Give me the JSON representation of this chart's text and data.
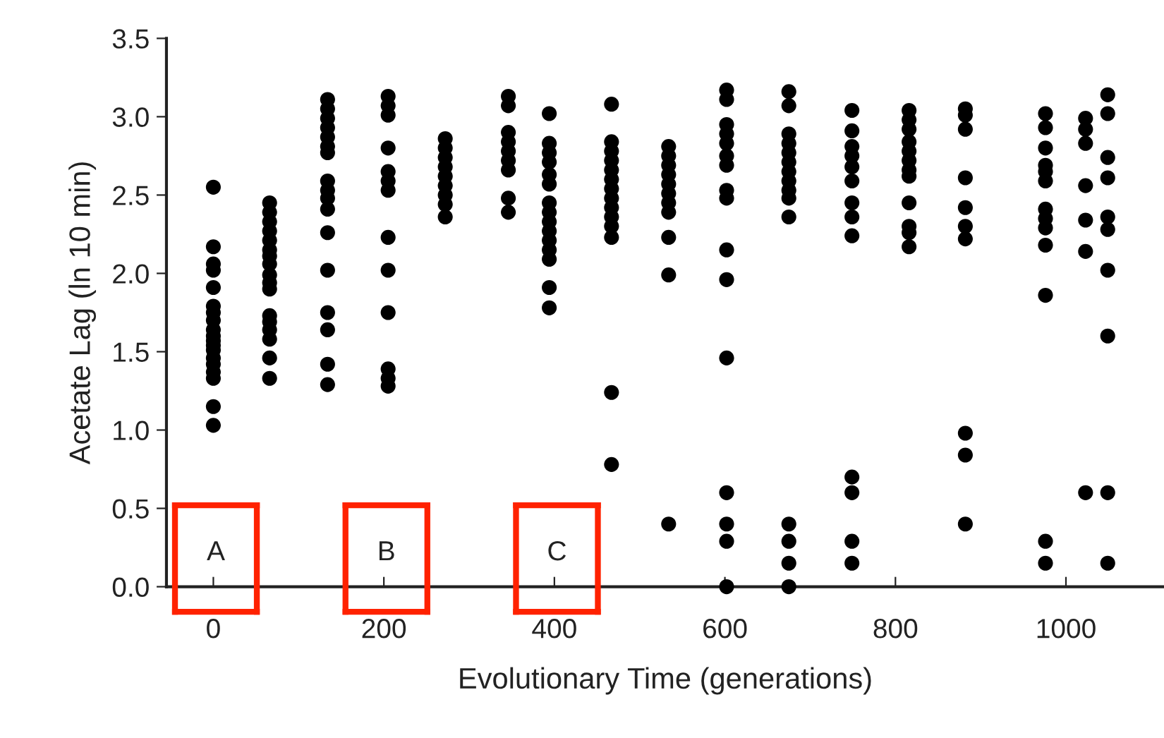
{
  "chart_data": {
    "type": "scatter",
    "xlabel": "Evolutionary Time (generations)",
    "ylabel": "Acetate Lag (ln 10 min)",
    "xlim": [
      -55,
      1115
    ],
    "xticks": [
      0,
      200,
      400,
      600,
      800,
      1000
    ],
    "ylim": [
      0,
      3.5
    ],
    "yticks": [
      {
        "value": 0,
        "label": "0.0"
      },
      {
        "value": 0.5,
        "label": "0.5"
      },
      {
        "value": 1,
        "label": "1.0"
      },
      {
        "value": 1.5,
        "label": "1.5"
      },
      {
        "value": 2,
        "label": "2.0"
      },
      {
        "value": 2.5,
        "label": "2.5"
      },
      {
        "value": 3,
        "label": "3.0"
      },
      {
        "value": 3.5,
        "label": "3.5"
      }
    ],
    "grid": false,
    "legend": false,
    "marker": "circle",
    "annotations": [
      "A",
      "B",
      "C"
    ],
    "series": [
      {
        "color": "#000000",
        "x": [
          0,
          0,
          0,
          0,
          0,
          0,
          0,
          0,
          0,
          0,
          0,
          0,
          0,
          0,
          0,
          0,
          0,
          0,
          0,
          66,
          66,
          66,
          66,
          66,
          66,
          66,
          66,
          66,
          66,
          66,
          66,
          66,
          66,
          66,
          66,
          66,
          134,
          134,
          134,
          134,
          134,
          134,
          134,
          134,
          134,
          134,
          134,
          134,
          134,
          134,
          134,
          134,
          134,
          205,
          205,
          205,
          205,
          205,
          205,
          205,
          205,
          205,
          205,
          205,
          205,
          205,
          272,
          272,
          272,
          272,
          272,
          272,
          272,
          272,
          272,
          346,
          346,
          346,
          346,
          346,
          346,
          346,
          346,
          346,
          394,
          394,
          394,
          394,
          394,
          394,
          394,
          394,
          394,
          394,
          394,
          394,
          394,
          394,
          394,
          467,
          467,
          467,
          467,
          467,
          467,
          467,
          467,
          467,
          467,
          467,
          467,
          467,
          467,
          534,
          534,
          534,
          534,
          534,
          534,
          534,
          534,
          534,
          534,
          534,
          602,
          602,
          602,
          602,
          602,
          602,
          602,
          602,
          602,
          602,
          602,
          602,
          602,
          602,
          602,
          602,
          675,
          675,
          675,
          675,
          675,
          675,
          675,
          675,
          675,
          675,
          675,
          675,
          675,
          675,
          675,
          749,
          749,
          749,
          749,
          749,
          749,
          749,
          749,
          749,
          749,
          749,
          749,
          749,
          816,
          816,
          816,
          816,
          816,
          816,
          816,
          816,
          816,
          816,
          816,
          816,
          882,
          882,
          882,
          882,
          882,
          882,
          882,
          882,
          882,
          882,
          976,
          976,
          976,
          976,
          976,
          976,
          976,
          976,
          976,
          976,
          976,
          976,
          976,
          1023,
          1023,
          1023,
          1023,
          1023,
          1023,
          1023,
          1049,
          1049,
          1049,
          1049,
          1049,
          1049,
          1049,
          1049,
          1049,
          1049
        ],
        "values": [
          2.55,
          2.17,
          2.06,
          2.02,
          1.91,
          1.79,
          1.75,
          1.7,
          1.64,
          1.6,
          1.57,
          1.54,
          1.51,
          1.46,
          1.42,
          1.37,
          1.33,
          1.15,
          1.03,
          2.45,
          2.39,
          2.33,
          2.27,
          2.21,
          2.15,
          2.11,
          2.06,
          1.99,
          1.94,
          1.9,
          1.73,
          1.69,
          1.64,
          1.58,
          1.46,
          1.33,
          3.11,
          3.05,
          2.99,
          2.93,
          2.87,
          2.81,
          2.77,
          2.59,
          2.53,
          2.48,
          2.41,
          2.26,
          2.02,
          1.75,
          1.64,
          1.42,
          1.29,
          3.13,
          3.07,
          3.01,
          2.8,
          2.65,
          2.59,
          2.53,
          2.23,
          2.02,
          1.75,
          1.39,
          1.33,
          1.28,
          2.86,
          2.8,
          2.74,
          2.68,
          2.62,
          2.56,
          2.5,
          2.44,
          2.36,
          3.13,
          3.07,
          2.9,
          2.84,
          2.78,
          2.72,
          2.66,
          2.48,
          2.39,
          3.02,
          2.83,
          2.77,
          2.71,
          2.63,
          2.57,
          2.45,
          2.39,
          2.33,
          2.27,
          2.21,
          2.15,
          2.09,
          1.91,
          1.78,
          3.08,
          2.84,
          2.78,
          2.72,
          2.66,
          2.6,
          2.54,
          2.48,
          2.42,
          2.36,
          2.3,
          2.23,
          1.24,
          0.78,
          2.81,
          2.75,
          2.69,
          2.63,
          2.57,
          2.51,
          2.45,
          2.39,
          2.23,
          1.99,
          0.4,
          3.17,
          3.11,
          2.95,
          2.89,
          2.83,
          2.75,
          2.69,
          2.53,
          2.48,
          2.15,
          1.96,
          1.46,
          0.6,
          0.4,
          0.29,
          0.0,
          3.16,
          3.07,
          2.89,
          2.83,
          2.77,
          2.71,
          2.65,
          2.59,
          2.53,
          2.48,
          2.36,
          0.4,
          0.29,
          0.15,
          0.0,
          3.04,
          2.91,
          2.81,
          2.75,
          2.68,
          2.59,
          2.45,
          2.36,
          2.24,
          0.7,
          0.6,
          0.29,
          0.15,
          3.04,
          2.98,
          2.92,
          2.84,
          2.78,
          2.72,
          2.66,
          2.62,
          2.45,
          2.3,
          2.26,
          2.17,
          3.05,
          3.01,
          2.92,
          2.61,
          2.42,
          2.3,
          2.22,
          0.98,
          0.84,
          0.4,
          3.02,
          2.93,
          2.8,
          2.69,
          2.65,
          2.59,
          2.41,
          2.35,
          2.29,
          2.18,
          1.86,
          0.29,
          0.15,
          2.99,
          2.92,
          2.83,
          2.56,
          2.34,
          2.14,
          0.6,
          3.14,
          3.02,
          2.74,
          2.61,
          2.36,
          2.28,
          2.02,
          1.6,
          0.6,
          0.15
        ]
      }
    ]
  }
}
